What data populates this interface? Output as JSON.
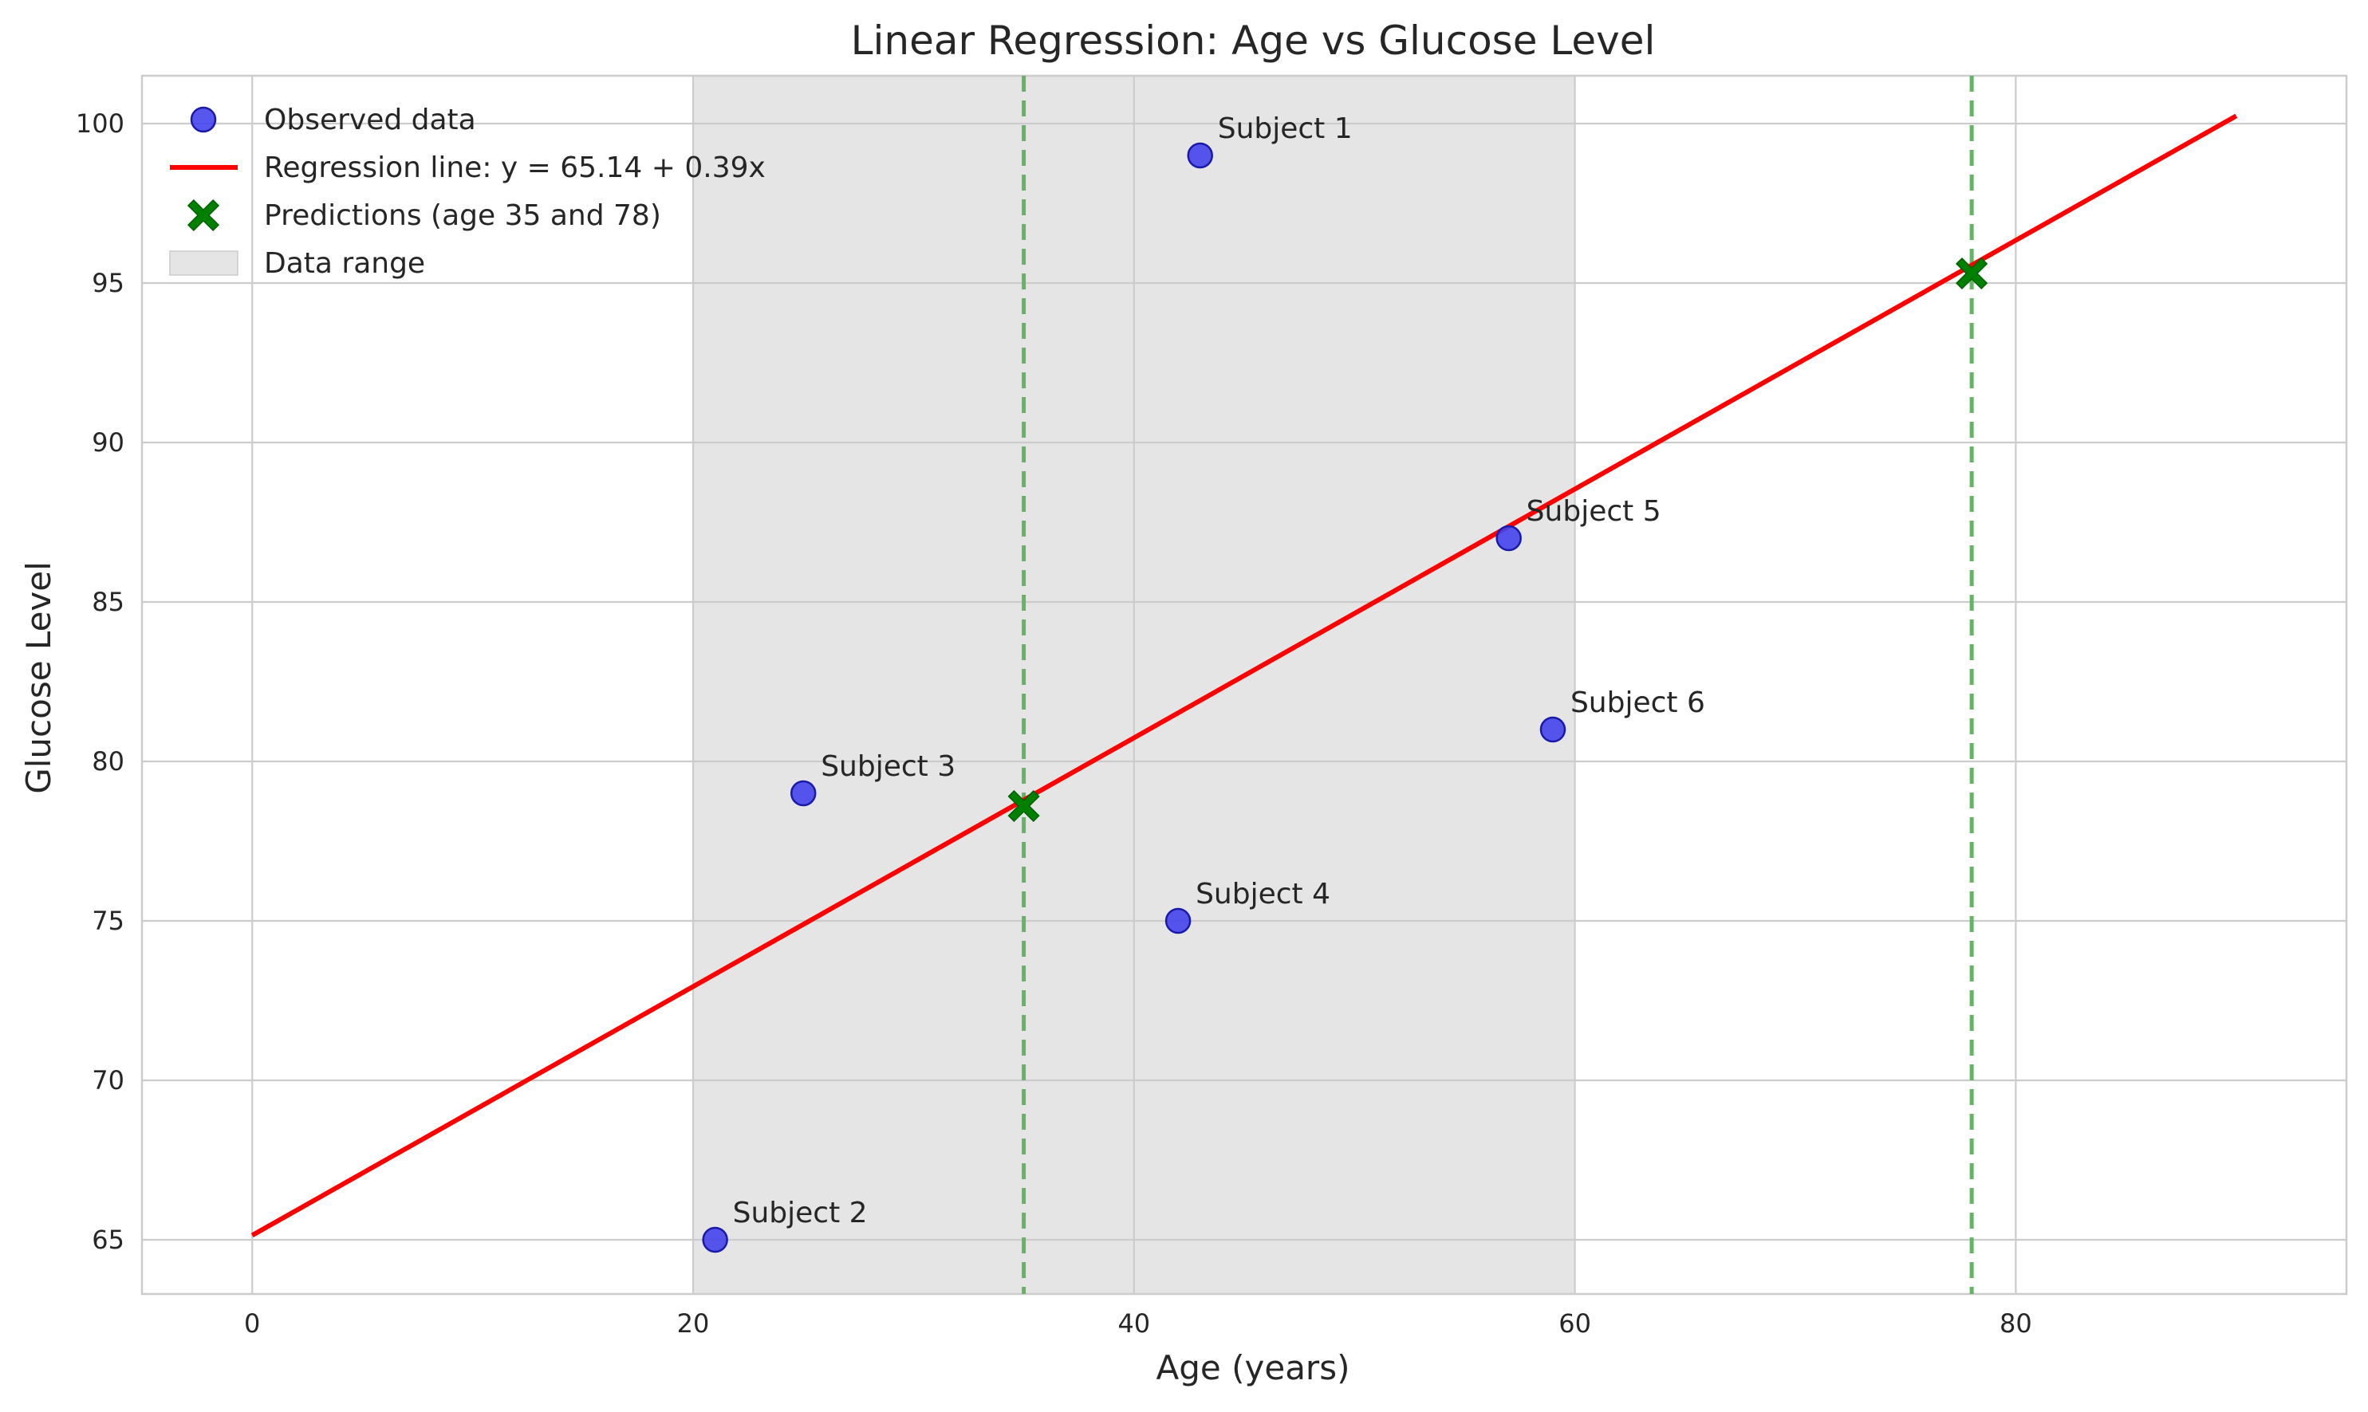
{
  "chart_data": {
    "type": "scatter",
    "title": "Linear Regression: Age vs Glucose Level",
    "xlabel": "Age (years)",
    "ylabel": "Glucose Level",
    "xlim": [
      -5,
      95
    ],
    "ylim": [
      63.3,
      101.5
    ],
    "xticks": [
      0,
      20,
      40,
      60,
      80
    ],
    "yticks": [
      65,
      70,
      75,
      80,
      85,
      90,
      95,
      100
    ],
    "grid": true,
    "legend_position": "top-left",
    "colors": {
      "observed": "#4040ee",
      "regression": "#ff0000",
      "prediction": "#008000",
      "prediction_line": "#66b266",
      "range": "#e5e5e5"
    },
    "data_range": {
      "label": "Data range",
      "x_start": 20,
      "x_end": 60
    },
    "observed": {
      "label": "Observed data",
      "points": [
        {
          "x": 43,
          "y": 99,
          "label": "Subject 1"
        },
        {
          "x": 21,
          "y": 65,
          "label": "Subject 2"
        },
        {
          "x": 25,
          "y": 79,
          "label": "Subject 3"
        },
        {
          "x": 42,
          "y": 75,
          "label": "Subject 4"
        },
        {
          "x": 57,
          "y": 87,
          "label": "Subject 5"
        },
        {
          "x": 59,
          "y": 81,
          "label": "Subject 6"
        }
      ]
    },
    "regression": {
      "label": "Regression line: y = 65.14 + 0.39x",
      "intercept": 65.14,
      "slope": 0.39,
      "x_start": 0,
      "x_end": 90
    },
    "predictions": {
      "label": "Predictions (age 35 and 78)",
      "points": [
        {
          "x": 35,
          "y": 78.6
        },
        {
          "x": 78,
          "y": 95.3
        }
      ]
    }
  }
}
